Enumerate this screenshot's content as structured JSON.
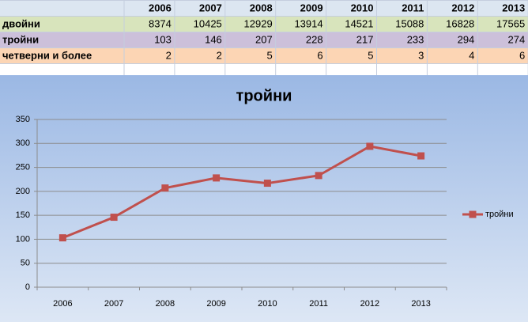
{
  "table": {
    "header": [
      "2006",
      "2007",
      "2008",
      "2009",
      "2010",
      "2011",
      "2012",
      "2013"
    ],
    "rows": [
      {
        "label": "двойни",
        "values": [
          8374,
          10425,
          12929,
          13914,
          14521,
          15088,
          16828,
          17565
        ]
      },
      {
        "label": "тройни",
        "values": [
          103,
          146,
          207,
          228,
          217,
          233,
          294,
          274
        ]
      },
      {
        "label": "четверни и более",
        "values": [
          2,
          2,
          5,
          6,
          5,
          3,
          4,
          6
        ]
      }
    ]
  },
  "chart_data": {
    "type": "line",
    "title": "тройни",
    "categories": [
      "2006",
      "2007",
      "2008",
      "2009",
      "2010",
      "2011",
      "2012",
      "2013"
    ],
    "series": [
      {
        "name": "тройни",
        "color": "#c0504d",
        "values": [
          103,
          146,
          207,
          228,
          217,
          233,
          294,
          274
        ]
      }
    ],
    "ylim": [
      0,
      350
    ],
    "yticks": [
      0,
      50,
      100,
      150,
      200,
      250,
      300,
      350
    ],
    "grid": true,
    "legend": "right"
  }
}
